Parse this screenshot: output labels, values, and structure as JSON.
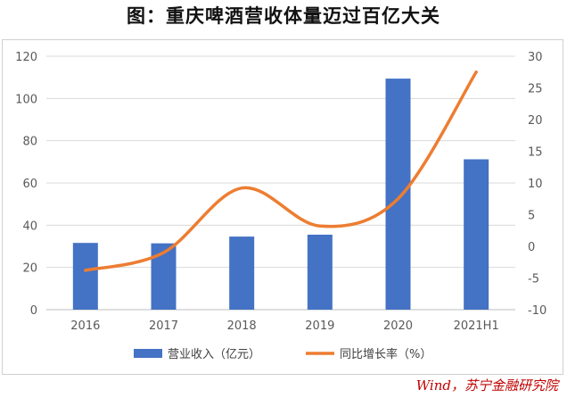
{
  "title": "图：重庆啤酒营收体量迈过百亿大关",
  "source": "Wind，苏宁金融研究院",
  "colors": {
    "bar": "#4472C4",
    "line": "#ED7D31",
    "grid": "#D9D9D9",
    "axis": "#BFBFBF"
  },
  "chart_data": {
    "type": "bar",
    "categories": [
      "2016",
      "2017",
      "2018",
      "2019",
      "2020",
      "2021H1"
    ],
    "series": [
      {
        "name": "营业收入（亿元）",
        "type": "bar",
        "axis": "left",
        "values": [
          31.6,
          31.4,
          34.6,
          35.5,
          109.4,
          71.2
        ]
      },
      {
        "name": "同比增长率（%）",
        "type": "line",
        "axis": "right",
        "smooth": true,
        "values": [
          -3.8,
          -1.0,
          9.2,
          3.2,
          7.5,
          27.5
        ]
      }
    ],
    "ylim": [
      0,
      120
    ],
    "y_ticks": [
      0,
      20,
      40,
      60,
      80,
      100,
      120
    ],
    "y2lim": [
      -10,
      30
    ],
    "y2_ticks": [
      -10,
      -5,
      0,
      5,
      10,
      15,
      20,
      25,
      30
    ],
    "grid": true,
    "legend": "bottom"
  }
}
